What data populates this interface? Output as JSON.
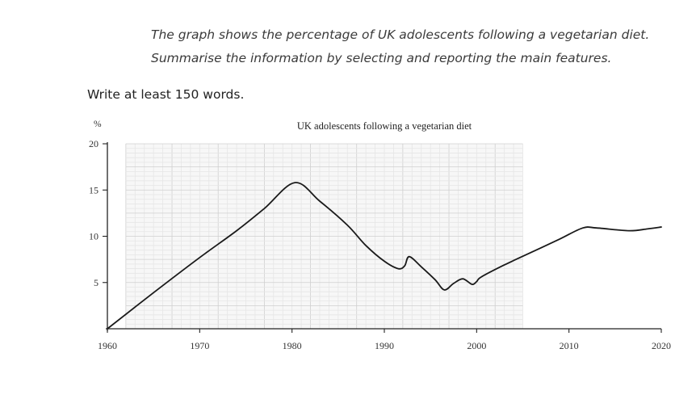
{
  "task": {
    "line1": "The graph shows the percentage of UK adolescents following a vegetarian diet.",
    "line2": "Summarise the information by selecting and reporting the main features.",
    "instruction": "Write at least 150 words."
  },
  "chart_data": {
    "type": "line",
    "title": "UK adolescents following a vegetarian diet",
    "ylabel": "%",
    "xlabel": "",
    "xlim": [
      1960,
      2020
    ],
    "ylim": [
      0,
      20
    ],
    "xticks": [
      1960,
      1970,
      1980,
      1990,
      2000,
      2010,
      2020
    ],
    "yticks": [
      5,
      10,
      15,
      20
    ],
    "grid": "graph paper (1960–2005)",
    "series": [
      {
        "x": [
          1960,
          1965,
          1970,
          1974,
          1977,
          1980.3,
          1983,
          1986,
          1988,
          1990,
          1991.5,
          1992.2,
          1992.7,
          1994,
          1995.5,
          1996.5,
          1997.5,
          1998.5,
          1999.5,
          2000,
          2000.5,
          2003,
          2006,
          2009,
          2011.5,
          2013,
          2016.5,
          2018.5,
          2020
        ],
        "y": [
          0,
          3.9,
          7.7,
          10.6,
          13.0,
          15.8,
          13.8,
          11.2,
          9.0,
          7.3,
          6.5,
          6.8,
          7.8,
          6.7,
          5.3,
          4.2,
          4.9,
          5.4,
          4.8,
          5.1,
          5.6,
          6.9,
          8.3,
          9.7,
          10.9,
          10.9,
          10.6,
          10.8,
          11.0
        ]
      }
    ]
  }
}
